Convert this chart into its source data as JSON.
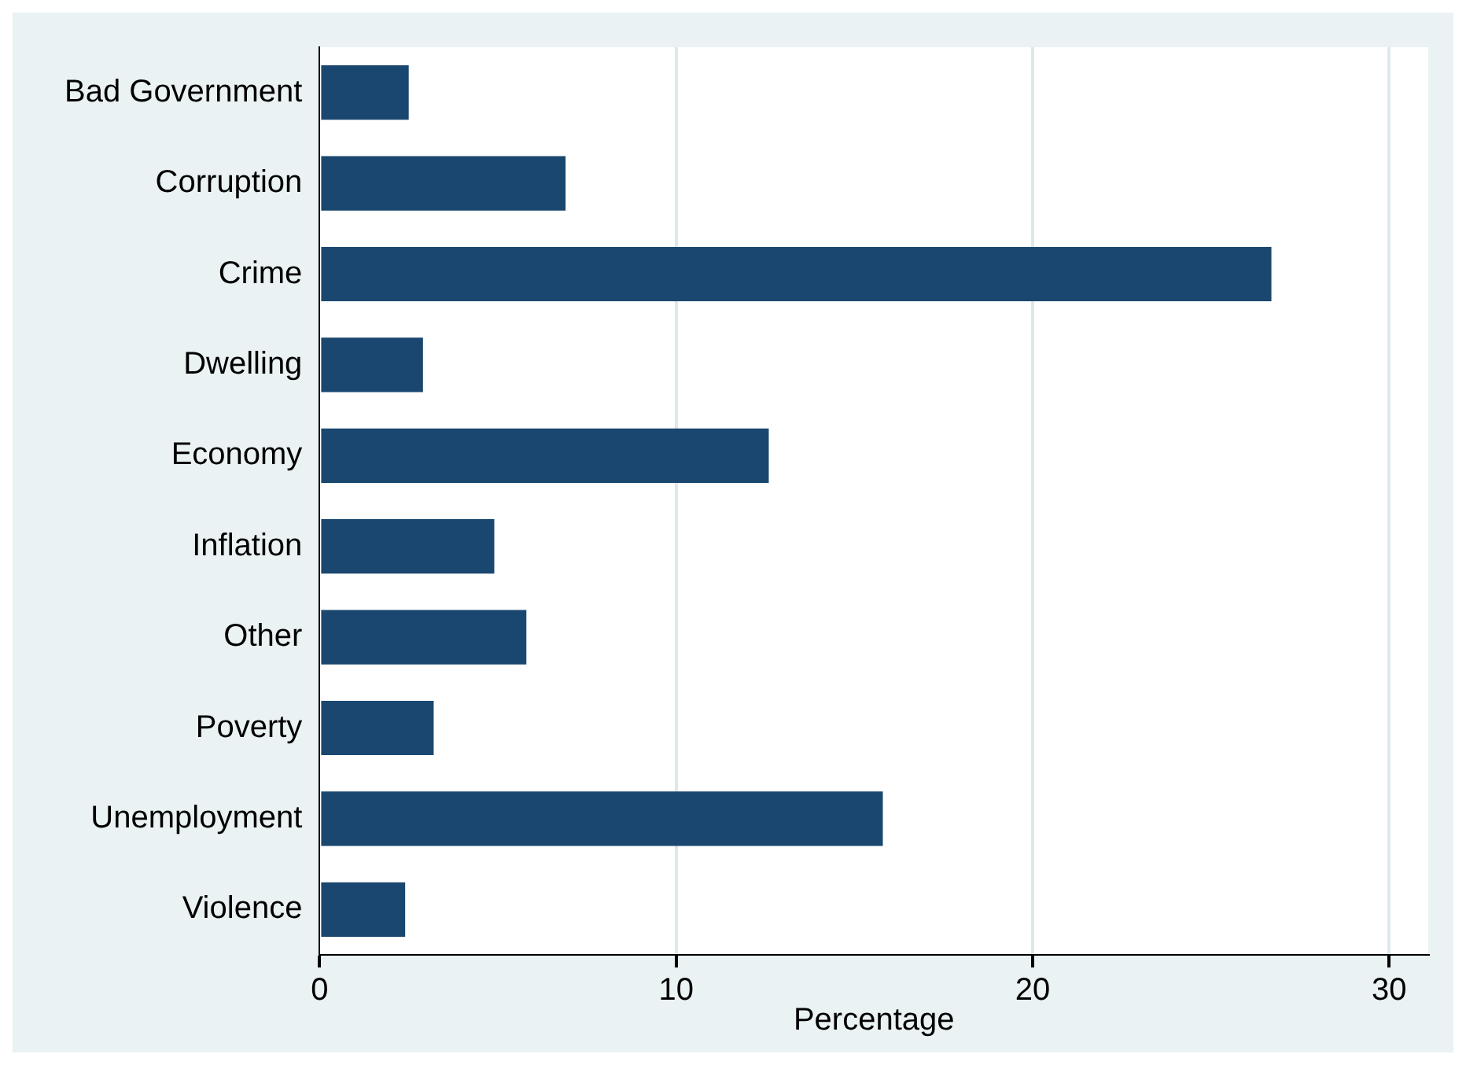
{
  "chart_data": {
    "type": "bar",
    "orientation": "horizontal",
    "xlabel": "Percentage",
    "categories": [
      "Bad Government",
      "Corruption",
      "Crime",
      "Dwelling",
      "Economy",
      "Inflation",
      "Other",
      "Poverty",
      "Unemployment",
      "Violence"
    ],
    "values": [
      2.5,
      6.9,
      26.7,
      2.9,
      12.6,
      4.9,
      5.8,
      3.2,
      15.8,
      2.4
    ],
    "color": "#1a476f",
    "xlim": [
      0,
      31.1
    ],
    "xticks": [
      0,
      10,
      20,
      30
    ],
    "grid": "x",
    "legend": false
  }
}
